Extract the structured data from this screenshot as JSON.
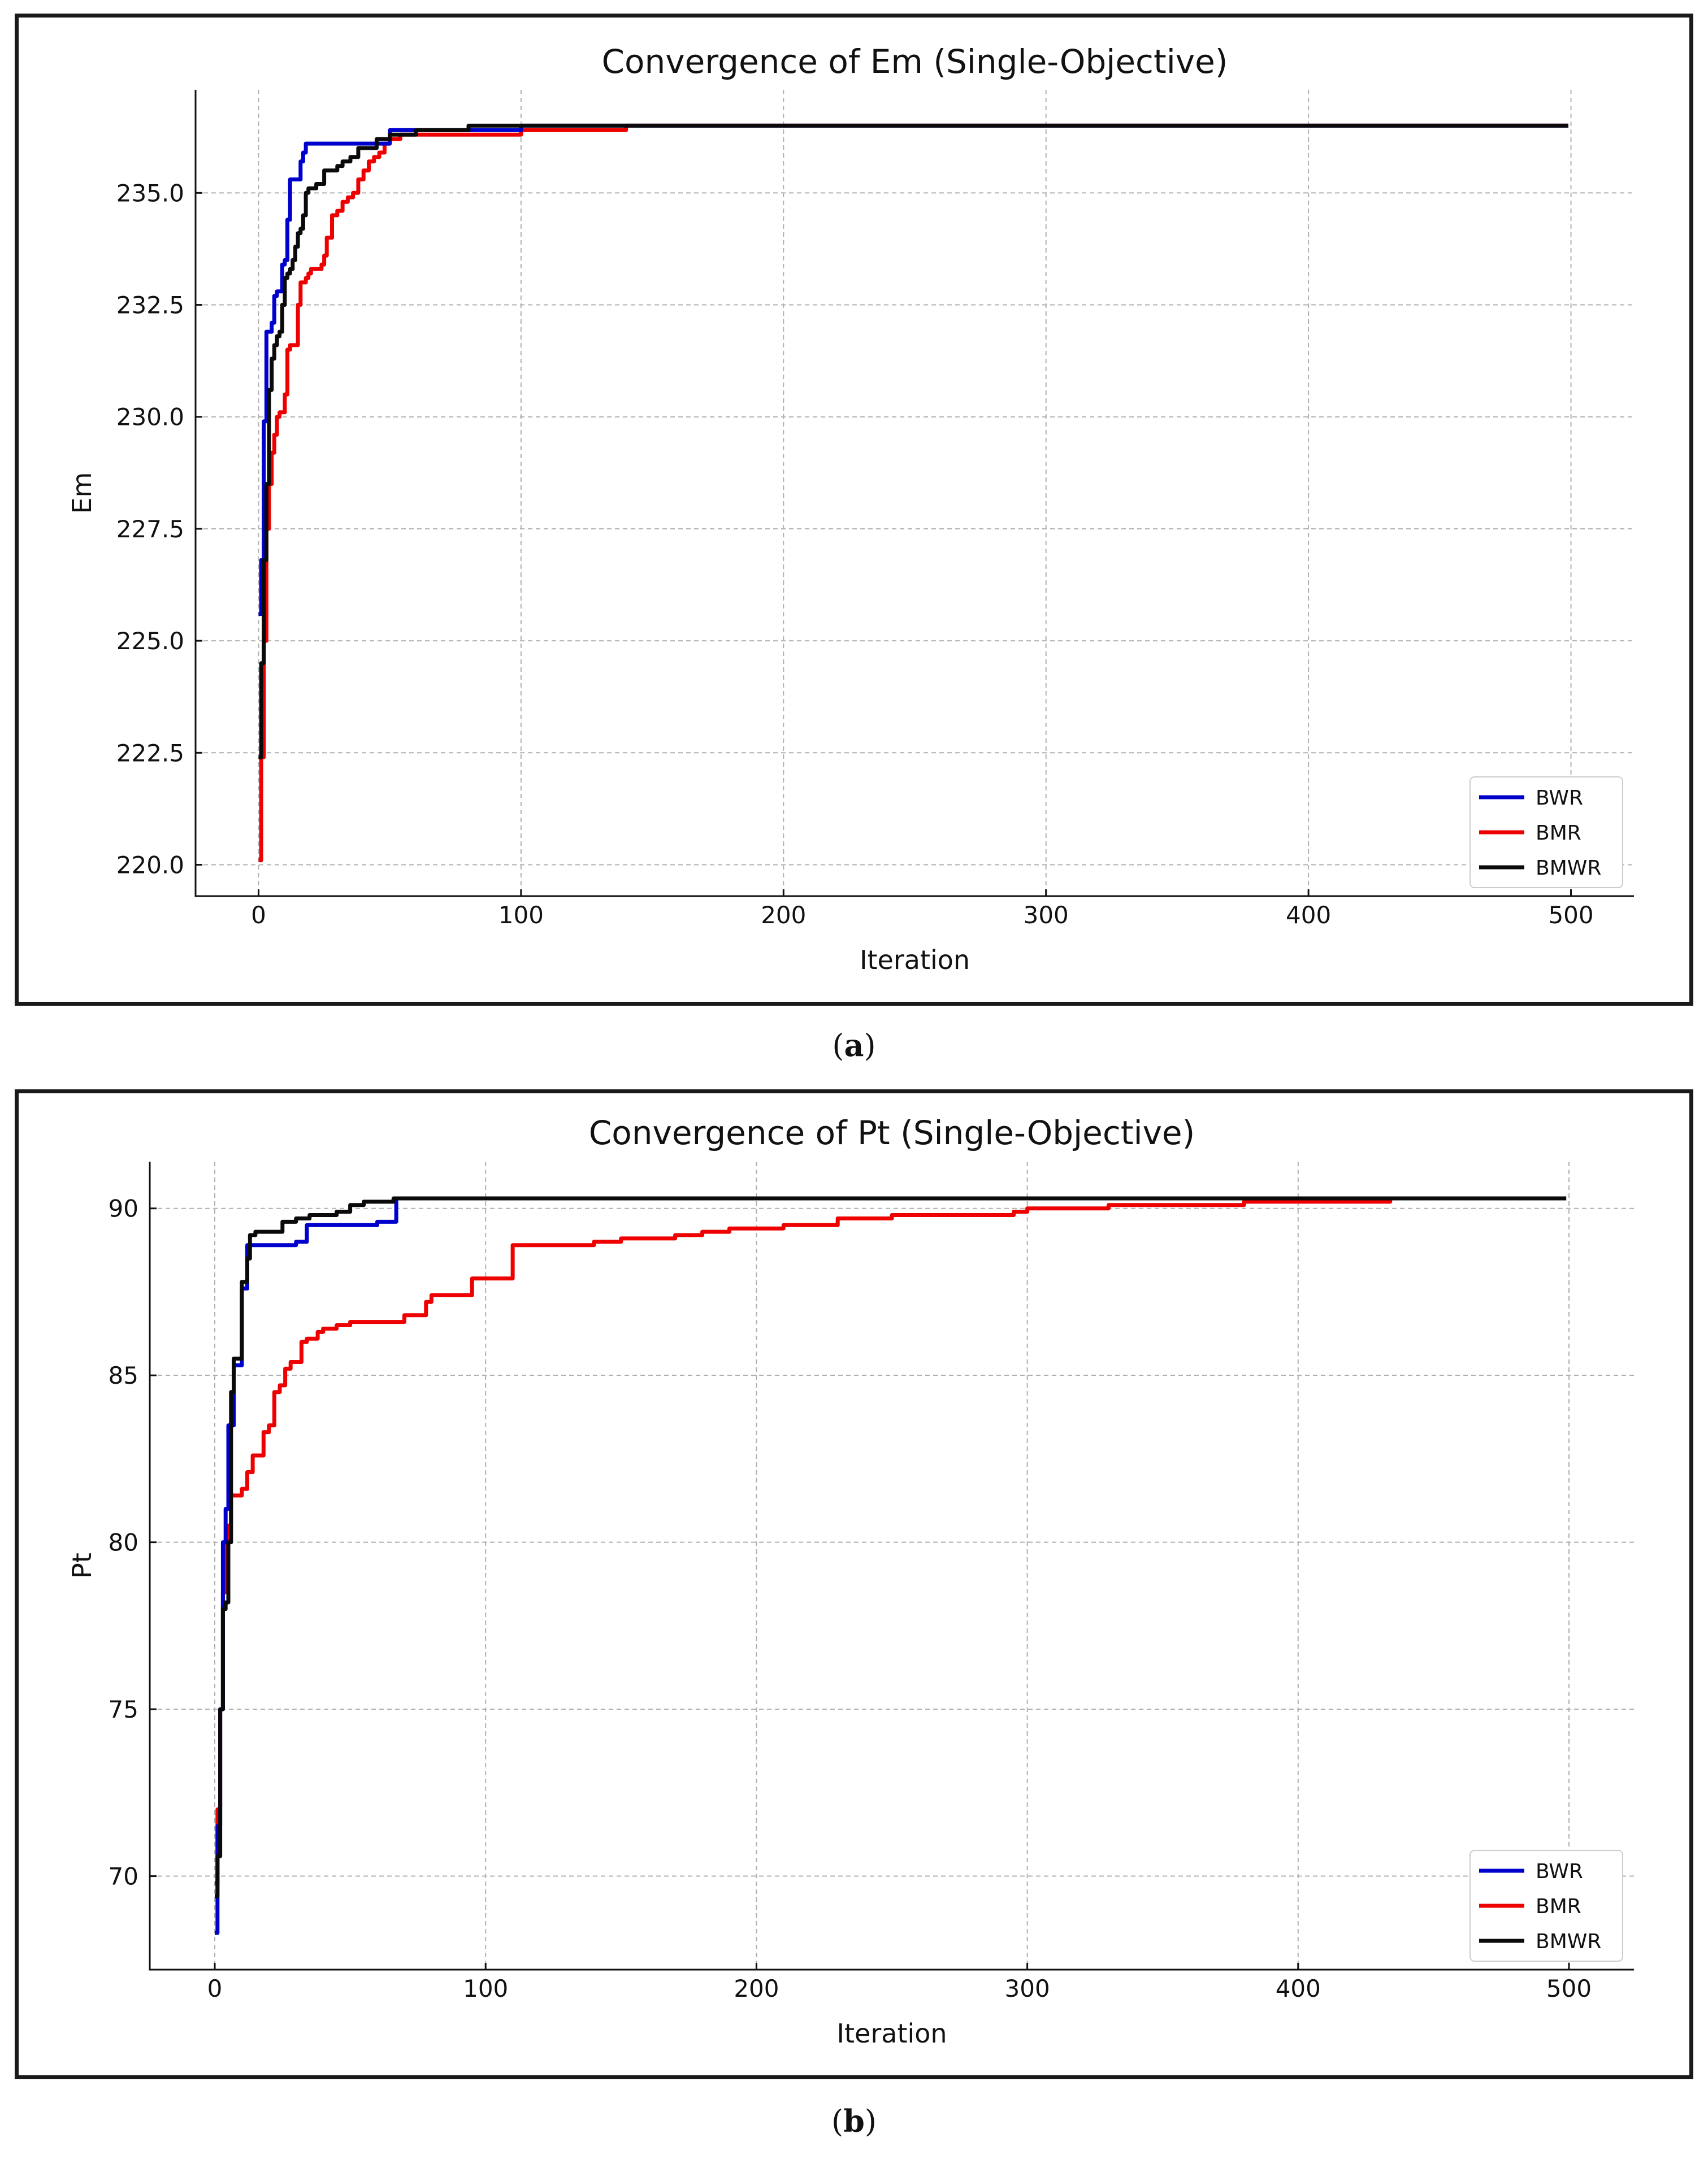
{
  "captions": [
    {
      "prefix": "(",
      "letter": "a",
      "suffix": ")"
    },
    {
      "prefix": "(",
      "letter": "b",
      "suffix": ")"
    }
  ],
  "chart_data": [
    {
      "type": "line",
      "title": "Convergence of Em (Single-Objective)",
      "xlabel": "Iteration",
      "ylabel": "Em",
      "xlim": [
        -24,
        524
      ],
      "ylim": [
        219.3,
        237.3
      ],
      "xticks": [
        0,
        100,
        200,
        300,
        400,
        500
      ],
      "xtick_labels": [
        "0",
        "100",
        "200",
        "300",
        "400",
        "500"
      ],
      "yticks": [
        220.0,
        222.5,
        225.0,
        227.5,
        230.0,
        232.5,
        235.0
      ],
      "ytick_labels": [
        "220.0",
        "222.5",
        "225.0",
        "227.5",
        "230.0",
        "232.5",
        "235.0"
      ],
      "grid": true,
      "legend_position": "lower-right",
      "series": [
        {
          "name": "BWR",
          "color": "#0000cc",
          "x": [
            0,
            1,
            2,
            3,
            4,
            5,
            6,
            7,
            8,
            9,
            10,
            11,
            12,
            13,
            14,
            15,
            16,
            17,
            18,
            19,
            20,
            50,
            100,
            140,
            499
          ],
          "y": [
            225.6,
            226.8,
            229.9,
            231.9,
            231.9,
            232.1,
            232.7,
            232.8,
            232.8,
            233.4,
            233.5,
            234.4,
            235.3,
            235.3,
            235.3,
            235.3,
            235.7,
            235.9,
            236.1,
            236.1,
            236.1,
            236.4,
            236.5,
            236.5,
            236.5
          ]
        },
        {
          "name": "BMR",
          "color": "#ee0000",
          "x": [
            0,
            1,
            2,
            3,
            4,
            5,
            6,
            7,
            8,
            9,
            10,
            11,
            12,
            13,
            14,
            15,
            16,
            17,
            18,
            19,
            20,
            22,
            24,
            25,
            26,
            28,
            29,
            30,
            32,
            34,
            36,
            38,
            40,
            42,
            44,
            45,
            46,
            48,
            50,
            52,
            54,
            60,
            70,
            80,
            90,
            100,
            110,
            120,
            140,
            499
          ],
          "y": [
            220.1,
            222.4,
            225.0,
            227.5,
            228.5,
            229.2,
            229.6,
            230.0,
            230.1,
            230.1,
            230.5,
            231.5,
            231.6,
            231.6,
            231.6,
            232.5,
            233.0,
            233.0,
            233.1,
            233.2,
            233.3,
            233.3,
            233.4,
            233.6,
            234.0,
            234.5,
            234.5,
            234.6,
            234.8,
            234.9,
            235.0,
            235.3,
            235.5,
            235.7,
            235.8,
            235.8,
            235.9,
            236.1,
            236.2,
            236.2,
            236.3,
            236.3,
            236.3,
            236.3,
            236.3,
            236.4,
            236.4,
            236.4,
            236.5,
            236.5
          ]
        },
        {
          "name": "BMWR",
          "color": "#0a0a0a",
          "x": [
            0,
            1,
            2,
            3,
            4,
            5,
            6,
            7,
            8,
            9,
            10,
            11,
            12,
            13,
            14,
            15,
            16,
            17,
            18,
            19,
            20,
            22,
            25,
            28,
            30,
            32,
            35,
            38,
            40,
            45,
            50,
            60,
            80,
            100,
            499
          ],
          "y": [
            222.4,
            224.5,
            226.8,
            228.5,
            230.6,
            231.3,
            231.6,
            231.8,
            231.9,
            232.5,
            233.1,
            233.2,
            233.3,
            233.5,
            233.8,
            234.1,
            234.2,
            234.5,
            235.0,
            235.1,
            235.1,
            235.2,
            235.5,
            235.5,
            235.6,
            235.7,
            235.8,
            236.0,
            236.0,
            236.2,
            236.3,
            236.4,
            236.5,
            236.5,
            236.5
          ]
        }
      ]
    },
    {
      "type": "line",
      "title": "Convergence of Pt (Single-Objective)",
      "xlabel": "Iteration",
      "ylabel": "Pt",
      "xlim": [
        -24,
        524
      ],
      "ylim": [
        67.2,
        91.4
      ],
      "xticks": [
        0,
        100,
        200,
        300,
        400,
        500
      ],
      "xtick_labels": [
        "0",
        "100",
        "200",
        "300",
        "400",
        "500"
      ],
      "yticks": [
        70,
        75,
        80,
        85,
        90
      ],
      "ytick_labels": [
        "70",
        "75",
        "80",
        "85",
        "90"
      ],
      "grid": true,
      "legend_position": "lower-right",
      "series": [
        {
          "name": "BWR",
          "color": "#0000cc",
          "x": [
            0,
            1,
            2,
            3,
            4,
            5,
            6,
            7,
            8,
            9,
            10,
            11,
            12,
            13,
            14,
            20,
            25,
            30,
            34,
            40,
            50,
            60,
            66,
            67,
            100,
            144
          ],
          "y": [
            68.3,
            71.5,
            75.0,
            80.0,
            81.0,
            83.5,
            83.5,
            85.3,
            85.3,
            85.3,
            87.6,
            87.6,
            88.9,
            88.9,
            88.9,
            88.9,
            88.9,
            89.0,
            89.5,
            89.5,
            89.5,
            89.6,
            89.6,
            90.3,
            90.3,
            90.3
          ]
        },
        {
          "name": "BMR",
          "color": "#ee0000",
          "x": [
            0,
            1,
            2,
            3,
            4,
            5,
            6,
            8,
            10,
            12,
            14,
            16,
            18,
            20,
            22,
            24,
            26,
            28,
            30,
            32,
            34,
            36,
            38,
            40,
            45,
            50,
            60,
            65,
            70,
            75,
            78,
            80,
            90,
            95,
            100,
            108,
            110,
            120,
            130,
            140,
            150,
            160,
            170,
            180,
            190,
            200,
            210,
            220,
            230,
            240,
            250,
            260,
            280,
            295,
            300,
            330,
            340,
            360,
            380,
            400,
            420,
            434
          ],
          "y": [
            69.8,
            72.0,
            75.0,
            78.5,
            80.0,
            80.5,
            81.4,
            81.4,
            81.6,
            82.1,
            82.6,
            82.6,
            83.3,
            83.5,
            84.5,
            84.7,
            85.2,
            85.4,
            85.4,
            86.0,
            86.1,
            86.1,
            86.3,
            86.4,
            86.5,
            86.6,
            86.6,
            86.6,
            86.8,
            86.8,
            87.2,
            87.4,
            87.4,
            87.9,
            87.9,
            87.9,
            88.9,
            88.9,
            88.9,
            89.0,
            89.1,
            89.1,
            89.2,
            89.3,
            89.4,
            89.4,
            89.5,
            89.5,
            89.7,
            89.7,
            89.8,
            89.8,
            89.8,
            89.9,
            90.0,
            90.1,
            90.1,
            90.1,
            90.2,
            90.2,
            90.2,
            90.3
          ]
        },
        {
          "name": "BMWR",
          "color": "#0a0a0a",
          "x": [
            0,
            1,
            2,
            3,
            4,
            5,
            6,
            7,
            8,
            9,
            10,
            11,
            12,
            13,
            14,
            15,
            20,
            25,
            30,
            35,
            40,
            45,
            50,
            55,
            60,
            66,
            100,
            499
          ],
          "y": [
            69.4,
            70.6,
            75.0,
            78.0,
            78.2,
            80.0,
            84.5,
            85.5,
            85.5,
            85.5,
            87.8,
            87.8,
            88.5,
            89.2,
            89.2,
            89.3,
            89.3,
            89.6,
            89.7,
            89.8,
            89.8,
            89.9,
            90.1,
            90.2,
            90.2,
            90.3,
            90.3,
            90.3
          ]
        }
      ]
    }
  ]
}
